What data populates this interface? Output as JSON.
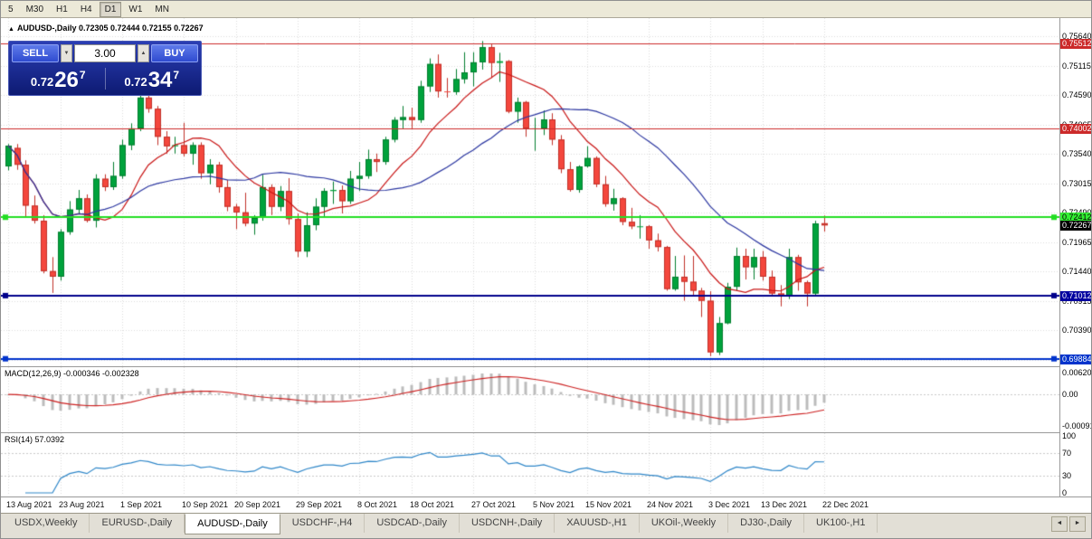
{
  "toolbar": {
    "periods": [
      "5",
      "M30",
      "H1",
      "H4",
      "D1",
      "W1",
      "MN"
    ],
    "active_period": "D1"
  },
  "chart_header": {
    "marker": "▲",
    "symbol": "AUDUSD-,Daily",
    "ohlc_text": "0.72305 0.72444 0.72155 0.72267"
  },
  "trade_panel": {
    "sell_label": "SELL",
    "buy_label": "BUY",
    "volume": "3.00",
    "spinner_down": "▼",
    "spinner_up": "▲",
    "bid": {
      "prefix": "0.72",
      "big": "26",
      "sup": "7"
    },
    "ask": {
      "prefix": "0.72",
      "big": "34",
      "sup": "7"
    }
  },
  "chart_data": {
    "type": "candlestick",
    "title": "AUDUSD-,Daily",
    "price_range": {
      "top": 0.7597,
      "bottom": 0.6975
    },
    "colors": {
      "up": "#00A23C",
      "up_edge": "#027D2E",
      "down": "#F4473D",
      "down_edge": "#C03028",
      "grid": "#DCDCDC",
      "ma_fast": "#C81414",
      "ma_slow": "#2B36A0"
    },
    "ma": {
      "fast_period": 10,
      "slow_period": 24
    },
    "y_ticks": [
      "0.75640",
      "0.75115",
      "0.74590",
      "0.74065",
      "0.73540",
      "0.73015",
      "0.72490",
      "0.71965",
      "0.71440",
      "0.70915",
      "0.70390",
      "0.69865"
    ],
    "x_labels": [
      {
        "i": 0,
        "text": "13 Aug 2021"
      },
      {
        "i": 6,
        "text": "23 Aug 2021"
      },
      {
        "i": 13,
        "text": "1 Sep 2021"
      },
      {
        "i": 20,
        "text": "10 Sep 2021"
      },
      {
        "i": 26,
        "text": "20 Sep 2021"
      },
      {
        "i": 33,
        "text": "29 Sep 2021"
      },
      {
        "i": 40,
        "text": "8 Oct 2021"
      },
      {
        "i": 46,
        "text": "18 Oct 2021"
      },
      {
        "i": 53,
        "text": "27 Oct 2021"
      },
      {
        "i": 60,
        "text": "5 Nov 2021"
      },
      {
        "i": 66,
        "text": "15 Nov 2021"
      },
      {
        "i": 73,
        "text": "24 Nov 2021"
      },
      {
        "i": 80,
        "text": "3 Dec 2021"
      },
      {
        "i": 86,
        "text": "13 Dec 2021"
      },
      {
        "i": 93,
        "text": "22 Dec 2021"
      }
    ],
    "candles": [
      [
        0.7332,
        0.7372,
        0.7325,
        0.7369
      ],
      [
        0.7365,
        0.7372,
        0.7326,
        0.7335
      ],
      [
        0.7335,
        0.7343,
        0.7241,
        0.7262
      ],
      [
        0.7262,
        0.728,
        0.723,
        0.7235
      ],
      [
        0.7235,
        0.7245,
        0.7141,
        0.7145
      ],
      [
        0.7145,
        0.717,
        0.7106,
        0.7135
      ],
      [
        0.7135,
        0.722,
        0.7128,
        0.7215
      ],
      [
        0.7215,
        0.727,
        0.721,
        0.7255
      ],
      [
        0.7255,
        0.729,
        0.7248,
        0.7275
      ],
      [
        0.7275,
        0.7282,
        0.7232,
        0.7235
      ],
      [
        0.7235,
        0.7318,
        0.7223,
        0.731
      ],
      [
        0.731,
        0.7318,
        0.7288,
        0.7295
      ],
      [
        0.7295,
        0.734,
        0.729,
        0.7315
      ],
      [
        0.7315,
        0.738,
        0.731,
        0.737
      ],
      [
        0.737,
        0.7409,
        0.7361,
        0.74
      ],
      [
        0.74,
        0.7477,
        0.7395,
        0.7455
      ],
      [
        0.7455,
        0.7462,
        0.7428,
        0.7435
      ],
      [
        0.7435,
        0.744,
        0.737,
        0.7385
      ],
      [
        0.7385,
        0.7395,
        0.7355,
        0.7368
      ],
      [
        0.7368,
        0.7385,
        0.7355,
        0.737
      ],
      [
        0.737,
        0.741,
        0.735,
        0.7355
      ],
      [
        0.7355,
        0.7375,
        0.7335,
        0.737
      ],
      [
        0.737,
        0.7375,
        0.731,
        0.732
      ],
      [
        0.732,
        0.7345,
        0.73,
        0.7335
      ],
      [
        0.7335,
        0.734,
        0.7285,
        0.7295
      ],
      [
        0.7295,
        0.7308,
        0.7252,
        0.726
      ],
      [
        0.726,
        0.7265,
        0.722,
        0.725
      ],
      [
        0.725,
        0.7285,
        0.7225,
        0.723
      ],
      [
        0.723,
        0.7245,
        0.721,
        0.724
      ],
      [
        0.724,
        0.7317,
        0.7235,
        0.7295
      ],
      [
        0.7295,
        0.73,
        0.7245,
        0.726
      ],
      [
        0.726,
        0.7297,
        0.7252,
        0.7288
      ],
      [
        0.7288,
        0.7311,
        0.7228,
        0.7238
      ],
      [
        0.7238,
        0.7248,
        0.717,
        0.718
      ],
      [
        0.718,
        0.725,
        0.717,
        0.7227
      ],
      [
        0.7227,
        0.7275,
        0.7218,
        0.726
      ],
      [
        0.726,
        0.7293,
        0.724,
        0.7288
      ],
      [
        0.7288,
        0.7305,
        0.7265,
        0.729
      ],
      [
        0.729,
        0.7298,
        0.7248,
        0.727
      ],
      [
        0.727,
        0.7324,
        0.7265,
        0.731
      ],
      [
        0.731,
        0.734,
        0.7288,
        0.7315
      ],
      [
        0.7315,
        0.7362,
        0.731,
        0.7345
      ],
      [
        0.7345,
        0.7355,
        0.7322,
        0.734
      ],
      [
        0.734,
        0.7385,
        0.7335,
        0.738
      ],
      [
        0.738,
        0.742,
        0.7375,
        0.7415
      ],
      [
        0.7415,
        0.744,
        0.74,
        0.742
      ],
      [
        0.742,
        0.7437,
        0.74,
        0.7415
      ],
      [
        0.7415,
        0.7485,
        0.741,
        0.7475
      ],
      [
        0.7475,
        0.7525,
        0.7465,
        0.7515
      ],
      [
        0.7515,
        0.7532,
        0.7455,
        0.7466
      ],
      [
        0.7466,
        0.749,
        0.7455,
        0.7465
      ],
      [
        0.7465,
        0.7506,
        0.746,
        0.7488
      ],
      [
        0.7488,
        0.7536,
        0.748,
        0.75
      ],
      [
        0.75,
        0.7536,
        0.7475,
        0.7518
      ],
      [
        0.7518,
        0.7556,
        0.7505,
        0.7545
      ],
      [
        0.7545,
        0.755,
        0.749,
        0.7517
      ],
      [
        0.7517,
        0.7535,
        0.7483,
        0.752
      ],
      [
        0.752,
        0.7522,
        0.7427,
        0.743
      ],
      [
        0.743,
        0.7455,
        0.741,
        0.7447
      ],
      [
        0.7447,
        0.7449,
        0.7385,
        0.74
      ],
      [
        0.74,
        0.7419,
        0.736,
        0.74
      ],
      [
        0.74,
        0.7432,
        0.7388,
        0.7416
      ],
      [
        0.7416,
        0.7427,
        0.737,
        0.738
      ],
      [
        0.738,
        0.7388,
        0.732,
        0.7327
      ],
      [
        0.7327,
        0.734,
        0.7287,
        0.729
      ],
      [
        0.729,
        0.7334,
        0.7285,
        0.7332
      ],
      [
        0.7332,
        0.7368,
        0.733,
        0.7347
      ],
      [
        0.7347,
        0.735,
        0.7295,
        0.73
      ],
      [
        0.73,
        0.7315,
        0.726,
        0.7265
      ],
      [
        0.7265,
        0.7292,
        0.7253,
        0.7275
      ],
      [
        0.7275,
        0.7277,
        0.7227,
        0.7233
      ],
      [
        0.7233,
        0.7258,
        0.722,
        0.7225
      ],
      [
        0.7225,
        0.7245,
        0.7203,
        0.7225
      ],
      [
        0.7225,
        0.7227,
        0.7185,
        0.72
      ],
      [
        0.72,
        0.7212,
        0.718,
        0.7188
      ],
      [
        0.7188,
        0.719,
        0.711,
        0.7113
      ],
      [
        0.7113,
        0.7172,
        0.711,
        0.7135
      ],
      [
        0.7135,
        0.7173,
        0.7092,
        0.7126
      ],
      [
        0.7126,
        0.7172,
        0.71,
        0.711
      ],
      [
        0.711,
        0.7115,
        0.7063,
        0.7092
      ],
      [
        0.7092,
        0.7109,
        0.6993,
        0.7
      ],
      [
        0.7,
        0.7063,
        0.6995,
        0.7052
      ],
      [
        0.7052,
        0.7124,
        0.705,
        0.7117
      ],
      [
        0.7117,
        0.7187,
        0.711,
        0.7172
      ],
      [
        0.7172,
        0.7185,
        0.713,
        0.7152
      ],
      [
        0.7152,
        0.7185,
        0.713,
        0.717
      ],
      [
        0.717,
        0.7181,
        0.7128,
        0.7135
      ],
      [
        0.7135,
        0.7146,
        0.71,
        0.7105
      ],
      [
        0.7105,
        0.712,
        0.7082,
        0.71
      ],
      [
        0.71,
        0.7185,
        0.7095,
        0.717
      ],
      [
        0.717,
        0.7174,
        0.711,
        0.7125
      ],
      [
        0.7125,
        0.7128,
        0.7082,
        0.7105
      ],
      [
        0.7105,
        0.7235,
        0.71,
        0.723
      ],
      [
        0.72305,
        0.72444,
        0.72155,
        0.72267
      ]
    ],
    "levels": [
      {
        "value": 0.75512,
        "label": "0.75512",
        "color": "#CC2A2A",
        "badge_bg": "#CC2A2A",
        "badge_fg": "#FFFFFF",
        "width": 1,
        "handles": false
      },
      {
        "value": 0.74002,
        "label": "0.74002",
        "color": "#CC2A2A",
        "badge_bg": "#CC2A2A",
        "badge_fg": "#FFFFFF",
        "width": 1,
        "handles": false
      },
      {
        "value": 0.72412,
        "label": "0.72412",
        "color": "#22DD22",
        "badge_bg": "#33EE33",
        "badge_fg": "#000000",
        "width": 2,
        "handles": true
      },
      {
        "value": 0.71012,
        "label": "0.71012",
        "color": "#00008B",
        "badge_bg": "#0000A0",
        "badge_fg": "#FFFFFF",
        "width": 2,
        "handles": true
      },
      {
        "value": 0.69884,
        "label": "0.69884",
        "color": "#0033CC",
        "badge_bg": "#0033CC",
        "badge_fg": "#FFFFFF",
        "width": 2,
        "handles": true
      }
    ],
    "current_price": {
      "value": 0.72267,
      "label": "0.72267",
      "badge_bg": "#000000",
      "badge_fg": "#FFFFFF"
    },
    "macd": {
      "header": "MACD(12,26,9) -0.000346 -0.002328",
      "params": {
        "fast": 12,
        "slow": 26,
        "signal": 9
      },
      "axis_labels": {
        "top": "0.006201",
        "zero": "0.00",
        "bottom": "-0.000919"
      },
      "colors": {
        "hist": "#BBBBBB",
        "signal": "#CC2020"
      }
    },
    "rsi": {
      "header": "RSI(14) 57.0392",
      "period": 14,
      "levels": [
        70,
        30
      ],
      "axis_values": [
        100,
        70,
        30,
        0
      ],
      "axis_labels": [
        "100",
        "70",
        "30",
        "0"
      ],
      "color": "#2E86C8"
    }
  },
  "tabs": {
    "items": [
      "USDX,Weekly",
      "EURUSD-,Daily",
      "AUDUSD-,Daily",
      "USDCHF-,H4",
      "USDCAD-,Daily",
      "USDCNH-,Daily",
      "XAUUSD-,H1",
      "UKOil-,Weekly",
      "DJ30-,Daily",
      "UK100-,H1"
    ],
    "active_index": 2,
    "scroll_left": "◄",
    "scroll_right": "►"
  }
}
